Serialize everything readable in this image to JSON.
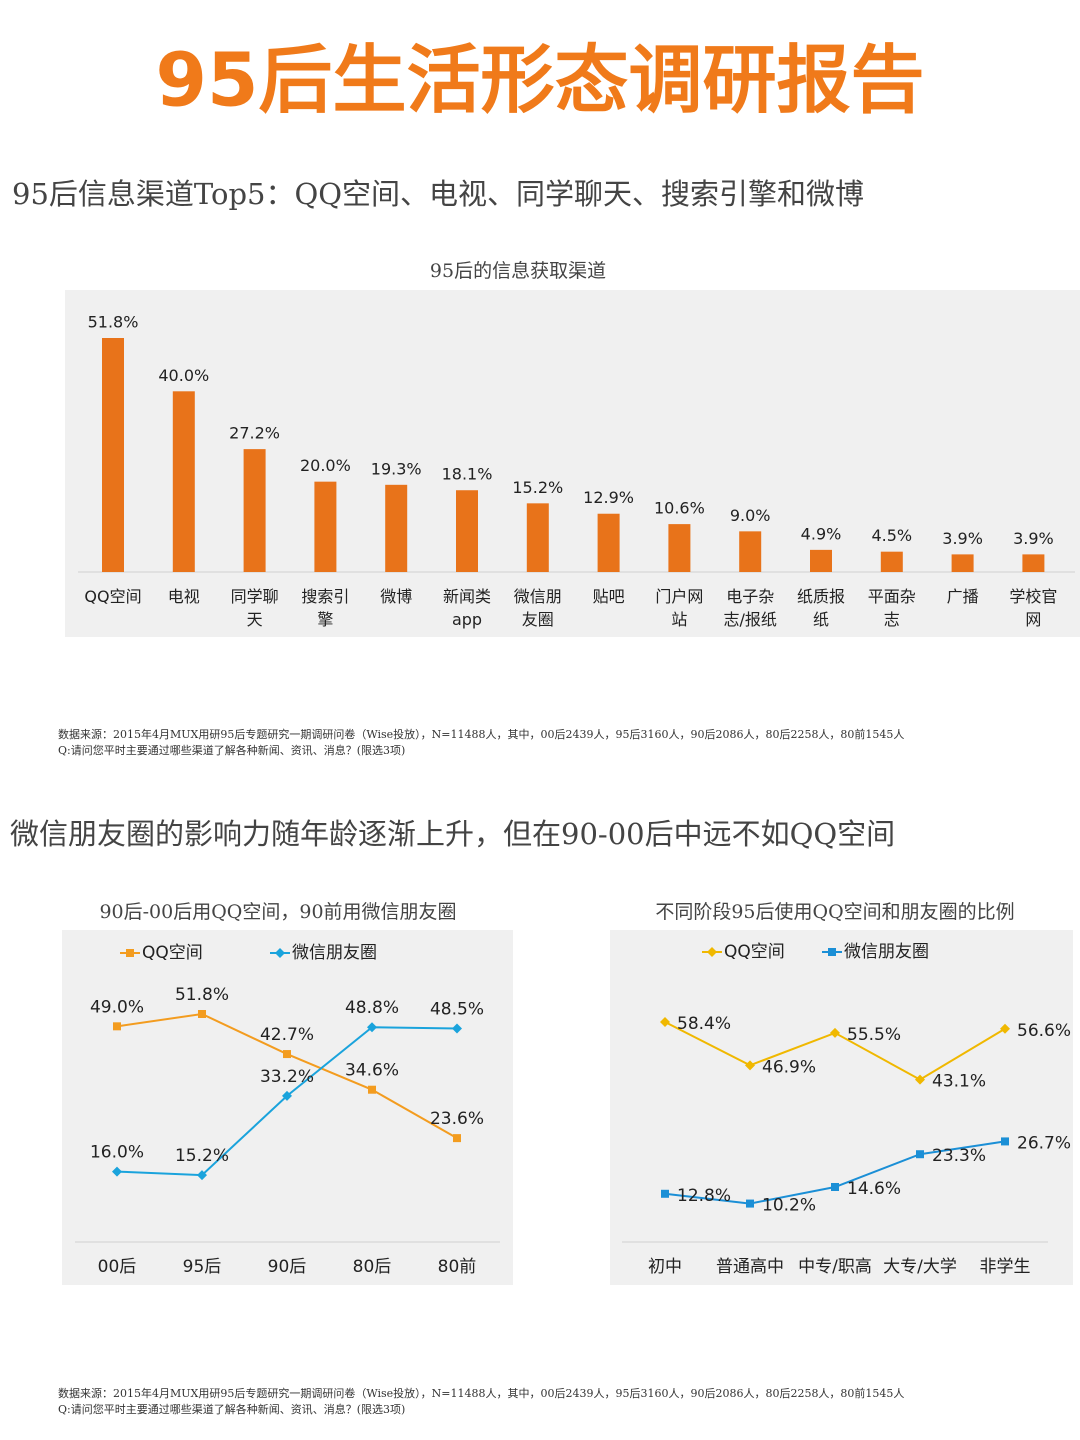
{
  "title": "95后生活形态调研报告",
  "sections": [
    {
      "heading": "95后信息渠道Top5：QQ空间、电视、同学聊天、搜索引擎和微博",
      "note": [
        "数据来源：2015年4月MUX用研95后专题研究一期调研问卷（Wise投放），N=11488人，其中，00后2439人，95后3160人，90后2086人，80后2258人，80前1545人",
        "Q:请问您平时主要通过哪些渠道了解各种新闻、资讯、消息？(限选3项)"
      ]
    },
    {
      "heading": "微信朋友圈的影响力随年龄逐渐上升，但在90-00后中远不如QQ空间",
      "note": [
        "数据来源：2015年4月MUX用研95后专题研究一期调研问卷（Wise投放），N=11488人，其中，00后2439人，95后3160人，90后2086人，80后2258人，80前1545人",
        "Q:请问您平时主要通过哪些渠道了解各种新闻、资讯、消息？(限选3项)"
      ]
    }
  ],
  "chart_data": [
    {
      "type": "bar",
      "title": "95后的信息获取渠道",
      "categories": [
        "QQ空间",
        "电视",
        "同学聊天",
        "搜索引擎",
        "微博",
        "新闻类app",
        "微信朋友圈",
        "贴吧",
        "门户网站",
        "电子杂志/报纸",
        "纸质报纸",
        "平面杂志",
        "广播",
        "学校官网"
      ],
      "values": [
        51.8,
        40.0,
        27.2,
        20.0,
        19.3,
        18.1,
        15.2,
        12.9,
        10.6,
        9.0,
        4.9,
        4.5,
        3.9,
        3.9
      ],
      "value_labels": [
        "51.8%",
        "40.0%",
        "27.2%",
        "20.0%",
        "19.3%",
        "18.1%",
        "15.2%",
        "12.9%",
        "10.6%",
        "9.0%",
        "4.9%",
        "4.5%",
        "3.9%",
        "3.9%"
      ],
      "color": "#e8731a"
    },
    {
      "type": "line",
      "title": "90后-00后用QQ空间，90前用微信朋友圈",
      "categories": [
        "00后",
        "95后",
        "90后",
        "80后",
        "80前"
      ],
      "series": [
        {
          "name": "QQ空间",
          "color": "#f39c1f",
          "marker": "square",
          "values": [
            49.0,
            51.8,
            42.7,
            34.6,
            23.6
          ],
          "value_labels": [
            "49.0%",
            "51.8%",
            "42.7%",
            "34.6%",
            "23.6%"
          ]
        },
        {
          "name": "微信朋友圈",
          "color": "#1aa3dc",
          "marker": "diamond",
          "values": [
            16.0,
            15.2,
            33.2,
            48.8,
            48.5
          ],
          "value_labels": [
            "16.0%",
            "15.2%",
            "33.2%",
            "48.8%",
            "48.5%"
          ]
        }
      ]
    },
    {
      "type": "line",
      "title": "不同阶段95后使用QQ空间和朋友圈的比例",
      "categories": [
        "初中",
        "普通高中",
        "中专/职高",
        "大专/大学",
        "非学生"
      ],
      "series": [
        {
          "name": "QQ空间",
          "color": "#f0b800",
          "marker": "diamond",
          "values": [
            58.4,
            46.9,
            55.5,
            43.1,
            56.6
          ],
          "value_labels": [
            "58.4%",
            "46.9%",
            "55.5%",
            "43.1%",
            "56.6%"
          ]
        },
        {
          "name": "微信朋友圈",
          "color": "#1b8fd6",
          "marker": "square",
          "values": [
            12.8,
            10.2,
            14.6,
            23.3,
            26.7
          ],
          "value_labels": [
            "12.8%",
            "10.2%",
            "14.6%",
            "23.3%",
            "26.7%"
          ]
        }
      ]
    }
  ]
}
